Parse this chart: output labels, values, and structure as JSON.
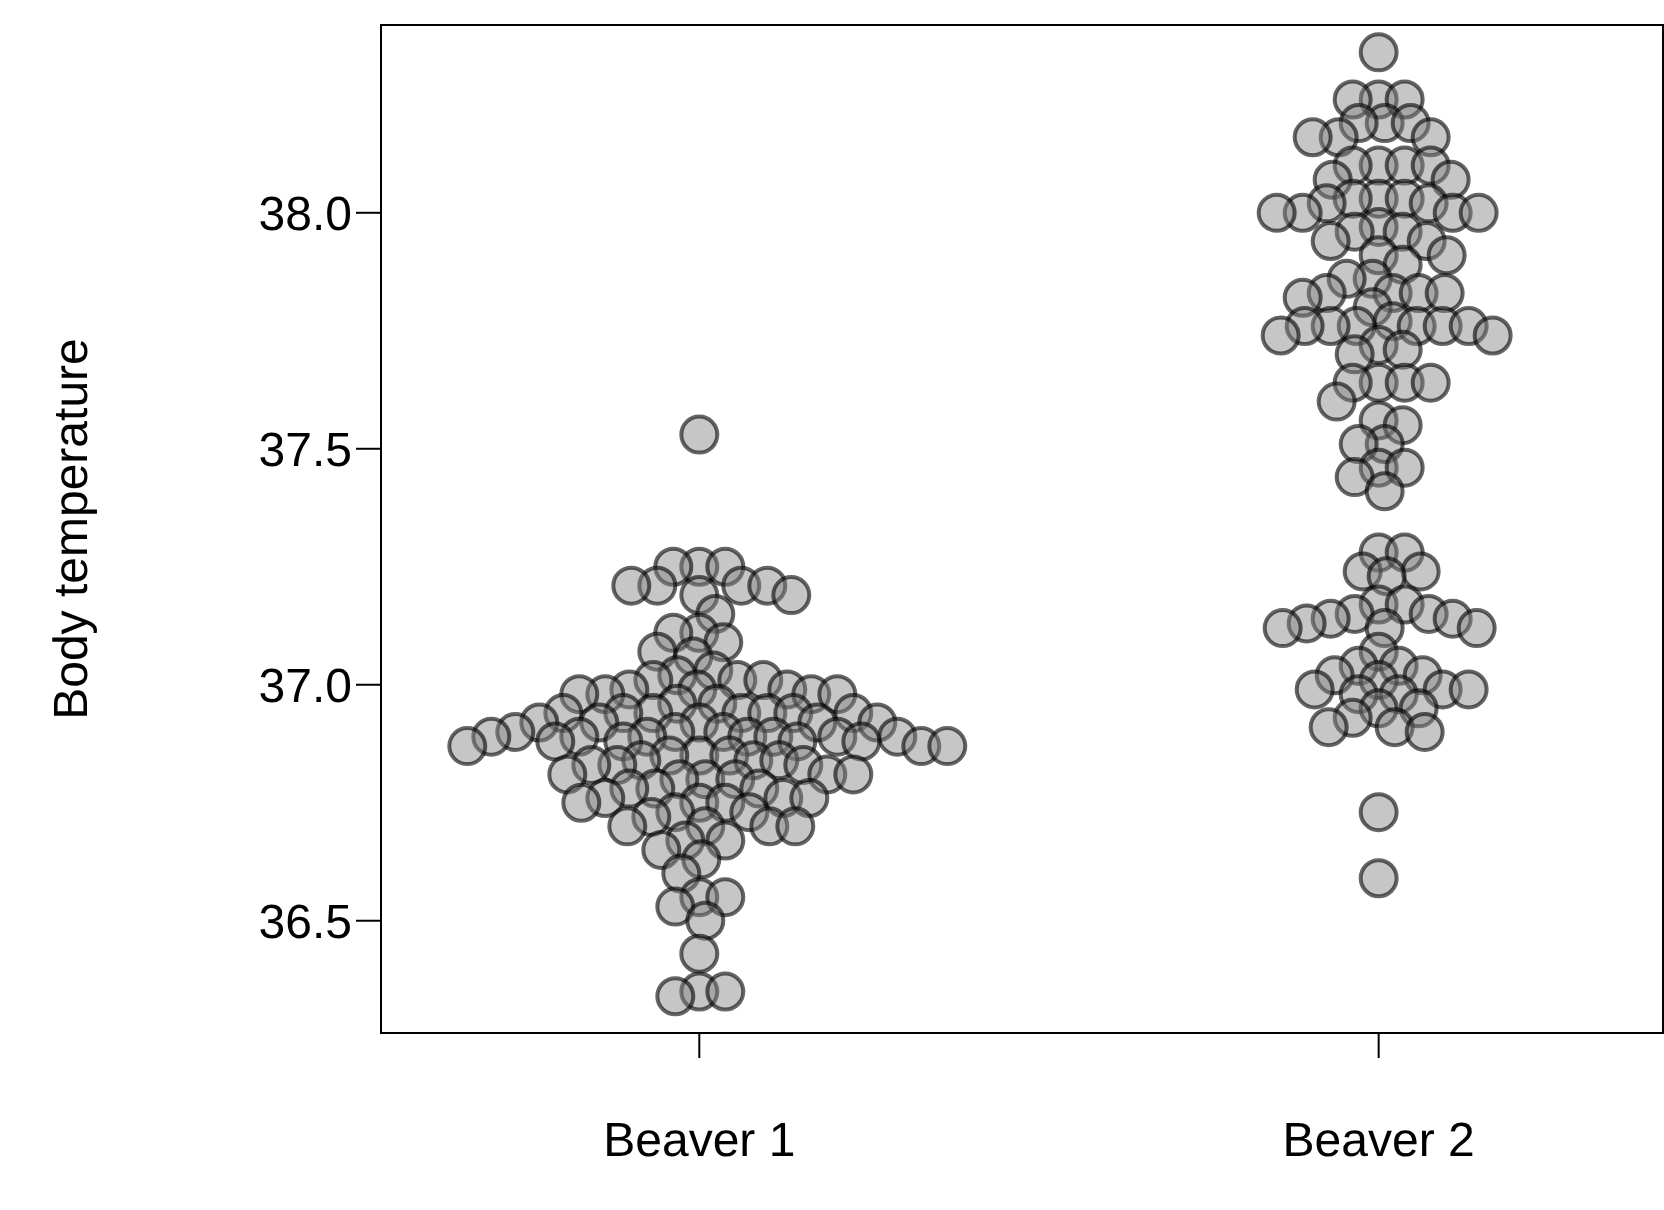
{
  "chart_data": {
    "type": "scatter",
    "ylabel": "Body temperature",
    "categories": [
      "Beaver 1",
      "Beaver 2"
    ],
    "series": [
      {
        "color": "#808080",
        "x": [
          "Beaver 1",
          "Beaver 1",
          "Beaver 1",
          "Beaver 1",
          "Beaver 1",
          "Beaver 1",
          "Beaver 1",
          "Beaver 1",
          "Beaver 1",
          "Beaver 1",
          "Beaver 1",
          "Beaver 1",
          "Beaver 1",
          "Beaver 1",
          "Beaver 1",
          "Beaver 1",
          "Beaver 1",
          "Beaver 1",
          "Beaver 1",
          "Beaver 1",
          "Beaver 1",
          "Beaver 1",
          "Beaver 1",
          "Beaver 1",
          "Beaver 1",
          "Beaver 1",
          "Beaver 1",
          "Beaver 1",
          "Beaver 1",
          "Beaver 1",
          "Beaver 1",
          "Beaver 1",
          "Beaver 1",
          "Beaver 1",
          "Beaver 1",
          "Beaver 1",
          "Beaver 1",
          "Beaver 1",
          "Beaver 1",
          "Beaver 1",
          "Beaver 1",
          "Beaver 1",
          "Beaver 1",
          "Beaver 1",
          "Beaver 1",
          "Beaver 1",
          "Beaver 1",
          "Beaver 1",
          "Beaver 1",
          "Beaver 1",
          "Beaver 1",
          "Beaver 1",
          "Beaver 1",
          "Beaver 1",
          "Beaver 1",
          "Beaver 1",
          "Beaver 1",
          "Beaver 1",
          "Beaver 1",
          "Beaver 1",
          "Beaver 1",
          "Beaver 1",
          "Beaver 1",
          "Beaver 1",
          "Beaver 1",
          "Beaver 1",
          "Beaver 1",
          "Beaver 1",
          "Beaver 1",
          "Beaver 1",
          "Beaver 1",
          "Beaver 1",
          "Beaver 1",
          "Beaver 1",
          "Beaver 1",
          "Beaver 1",
          "Beaver 1",
          "Beaver 1",
          "Beaver 1",
          "Beaver 1",
          "Beaver 1",
          "Beaver 1",
          "Beaver 1",
          "Beaver 1",
          "Beaver 1",
          "Beaver 1",
          "Beaver 1",
          "Beaver 1",
          "Beaver 1",
          "Beaver 1",
          "Beaver 1",
          "Beaver 1",
          "Beaver 1",
          "Beaver 1",
          "Beaver 1",
          "Beaver 1",
          "Beaver 1",
          "Beaver 1",
          "Beaver 1",
          "Beaver 1",
          "Beaver 1",
          "Beaver 1",
          "Beaver 1"
        ],
        "values": [
          37.53,
          37.25,
          37.25,
          37.25,
          37.21,
          37.21,
          37.21,
          37.21,
          37.19,
          37.19,
          37.15,
          37.11,
          37.11,
          37.09,
          37.07,
          37.06,
          37.03,
          37.02,
          37.01,
          37.01,
          37.01,
          36.99,
          36.99,
          36.99,
          36.98,
          36.98,
          36.98,
          36.98,
          36.96,
          36.96,
          36.94,
          36.94,
          36.94,
          36.94,
          36.94,
          36.94,
          36.94,
          36.92,
          36.92,
          36.92,
          36.92,
          36.92,
          36.9,
          36.9,
          36.9,
          36.89,
          36.89,
          36.89,
          36.89,
          36.89,
          36.89,
          36.89,
          36.88,
          36.88,
          36.88,
          36.88,
          36.87,
          36.87,
          36.87,
          36.85,
          36.85,
          36.85,
          36.84,
          36.84,
          36.84,
          36.83,
          36.83,
          36.83,
          36.81,
          36.81,
          36.81,
          36.8,
          36.8,
          36.8,
          36.78,
          36.78,
          36.78,
          36.76,
          36.76,
          36.76,
          36.75,
          36.75,
          36.75,
          36.73,
          36.73,
          36.72,
          36.7,
          36.7,
          36.7,
          36.7,
          36.67,
          36.67,
          36.65,
          36.63,
          36.6,
          36.55,
          36.55,
          36.53,
          36.5,
          36.43,
          36.35,
          36.35,
          36.34
        ]
      },
      {
        "color": "#808080",
        "x": [
          "Beaver 2",
          "Beaver 2",
          "Beaver 2",
          "Beaver 2",
          "Beaver 2",
          "Beaver 2",
          "Beaver 2",
          "Beaver 2",
          "Beaver 2",
          "Beaver 2",
          "Beaver 2",
          "Beaver 2",
          "Beaver 2",
          "Beaver 2",
          "Beaver 2",
          "Beaver 2",
          "Beaver 2",
          "Beaver 2",
          "Beaver 2",
          "Beaver 2",
          "Beaver 2",
          "Beaver 2",
          "Beaver 2",
          "Beaver 2",
          "Beaver 2",
          "Beaver 2",
          "Beaver 2",
          "Beaver 2",
          "Beaver 2",
          "Beaver 2",
          "Beaver 2",
          "Beaver 2",
          "Beaver 2",
          "Beaver 2",
          "Beaver 2",
          "Beaver 2",
          "Beaver 2",
          "Beaver 2",
          "Beaver 2",
          "Beaver 2",
          "Beaver 2",
          "Beaver 2",
          "Beaver 2",
          "Beaver 2",
          "Beaver 2",
          "Beaver 2",
          "Beaver 2",
          "Beaver 2",
          "Beaver 2",
          "Beaver 2",
          "Beaver 2",
          "Beaver 2",
          "Beaver 2",
          "Beaver 2",
          "Beaver 2",
          "Beaver 2",
          "Beaver 2",
          "Beaver 2",
          "Beaver 2",
          "Beaver 2",
          "Beaver 2",
          "Beaver 2",
          "Beaver 2",
          "Beaver 2",
          "Beaver 2",
          "Beaver 2",
          "Beaver 2",
          "Beaver 2",
          "Beaver 2",
          "Beaver 2",
          "Beaver 2",
          "Beaver 2",
          "Beaver 2",
          "Beaver 2",
          "Beaver 2",
          "Beaver 2",
          "Beaver 2",
          "Beaver 2",
          "Beaver 2",
          "Beaver 2",
          "Beaver 2",
          "Beaver 2",
          "Beaver 2",
          "Beaver 2",
          "Beaver 2",
          "Beaver 2",
          "Beaver 2",
          "Beaver 2",
          "Beaver 2",
          "Beaver 2",
          "Beaver 2",
          "Beaver 2",
          "Beaver 2",
          "Beaver 2",
          "Beaver 2",
          "Beaver 2",
          "Beaver 2",
          "Beaver 2",
          "Beaver 2",
          "Beaver 2"
        ],
        "values": [
          38.34,
          38.24,
          38.24,
          38.24,
          38.19,
          38.19,
          38.19,
          38.16,
          38.16,
          38.16,
          38.1,
          38.1,
          38.1,
          38.1,
          38.07,
          38.07,
          38.03,
          38.03,
          38.03,
          38.02,
          38.02,
          38.0,
          38.0,
          38.0,
          38.0,
          37.97,
          37.96,
          37.96,
          37.94,
          37.94,
          37.91,
          37.91,
          37.89,
          37.86,
          37.86,
          37.83,
          37.83,
          37.83,
          37.83,
          37.82,
          37.8,
          37.77,
          37.76,
          37.76,
          37.76,
          37.76,
          37.76,
          37.76,
          37.74,
          37.74,
          37.72,
          37.71,
          37.7,
          37.64,
          37.64,
          37.64,
          37.64,
          37.6,
          37.56,
          37.55,
          37.51,
          37.51,
          37.46,
          37.46,
          37.44,
          37.41,
          37.28,
          37.28,
          37.24,
          37.24,
          37.23,
          37.17,
          37.17,
          37.15,
          37.15,
          37.14,
          37.14,
          37.13,
          37.12,
          37.12,
          37.12,
          37.07,
          37.04,
          37.04,
          37.02,
          37.02,
          37.01,
          36.99,
          36.99,
          36.99,
          36.98,
          36.98,
          36.95,
          36.95,
          36.93,
          36.91,
          36.91,
          36.9,
          36.73,
          36.59
        ]
      }
    ],
    "marker": "circle",
    "ylim": [
      36.26,
      38.4
    ],
    "yticks": [
      36.5,
      {
        "value": 37,
        "label": "37.0"
      },
      37.5,
      {
        "value": 38,
        "label": "38.0"
      }
    ]
  }
}
